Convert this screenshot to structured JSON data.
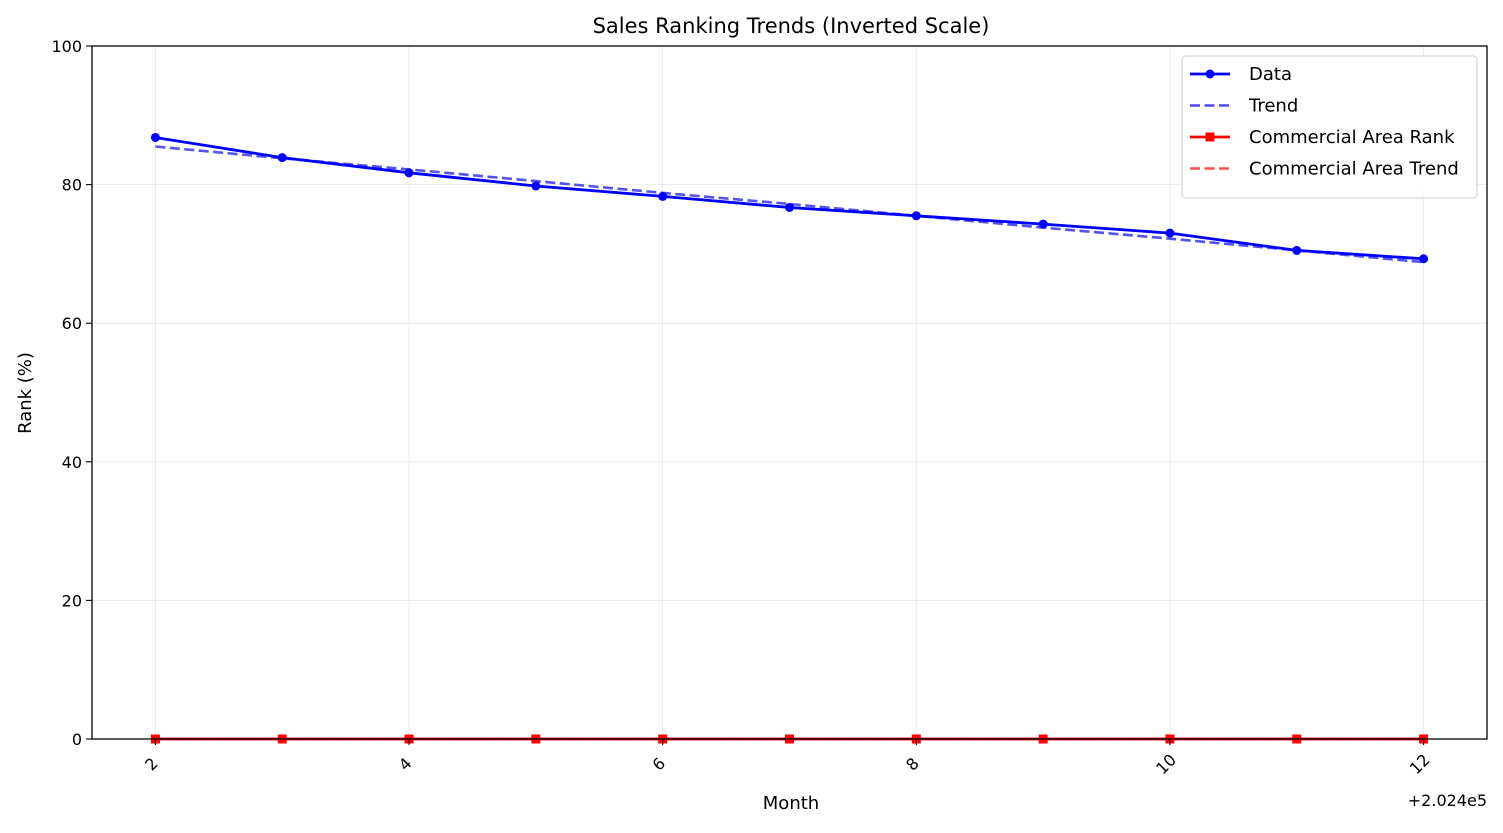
{
  "chart_data": {
    "type": "line",
    "title": "Sales Ranking Trends (Inverted Scale)",
    "xlabel": "Month",
    "ylabel": "Rank (%)",
    "x_offset_label": "+2.024e5",
    "x": [
      2,
      3,
      4,
      5,
      6,
      7,
      8,
      9,
      10,
      11,
      12
    ],
    "xlim": [
      1.5,
      12.5
    ],
    "xticks": [
      2,
      4,
      6,
      8,
      10,
      12
    ],
    "xtick_labels": [
      "2",
      "4",
      "6",
      "8",
      "10",
      "12"
    ],
    "ylim": [
      0,
      100
    ],
    "yticks": [
      0,
      20,
      40,
      60,
      80,
      100
    ],
    "ytick_labels": [
      "0",
      "20",
      "40",
      "60",
      "80",
      "100"
    ],
    "grid": true,
    "legend_position": "top-right",
    "series": [
      {
        "name": "Data",
        "values": [
          86.8,
          83.9,
          81.7,
          79.8,
          78.3,
          76.7,
          75.5,
          74.3,
          73.0,
          70.5,
          69.3
        ],
        "color": "#0000ff",
        "style": "solid",
        "marker": "circle"
      },
      {
        "name": "Trend",
        "values": [
          85.5,
          83.8,
          82.2,
          80.5,
          78.8,
          77.2,
          75.5,
          73.8,
          72.2,
          70.5,
          68.8
        ],
        "color": "#4b4bea",
        "style": "dashed",
        "marker": "none"
      },
      {
        "name": "Commercial Area Rank",
        "values": [
          0,
          0,
          0,
          0,
          0,
          0,
          0,
          0,
          0,
          0,
          0
        ],
        "color": "#ff0000",
        "style": "solid",
        "marker": "square"
      },
      {
        "name": "Commercial Area Trend",
        "values": [
          0,
          0,
          0,
          0,
          0,
          0,
          0,
          0,
          0,
          0,
          0
        ],
        "color": "#ff4b4b",
        "style": "dashed",
        "marker": "none"
      }
    ]
  }
}
